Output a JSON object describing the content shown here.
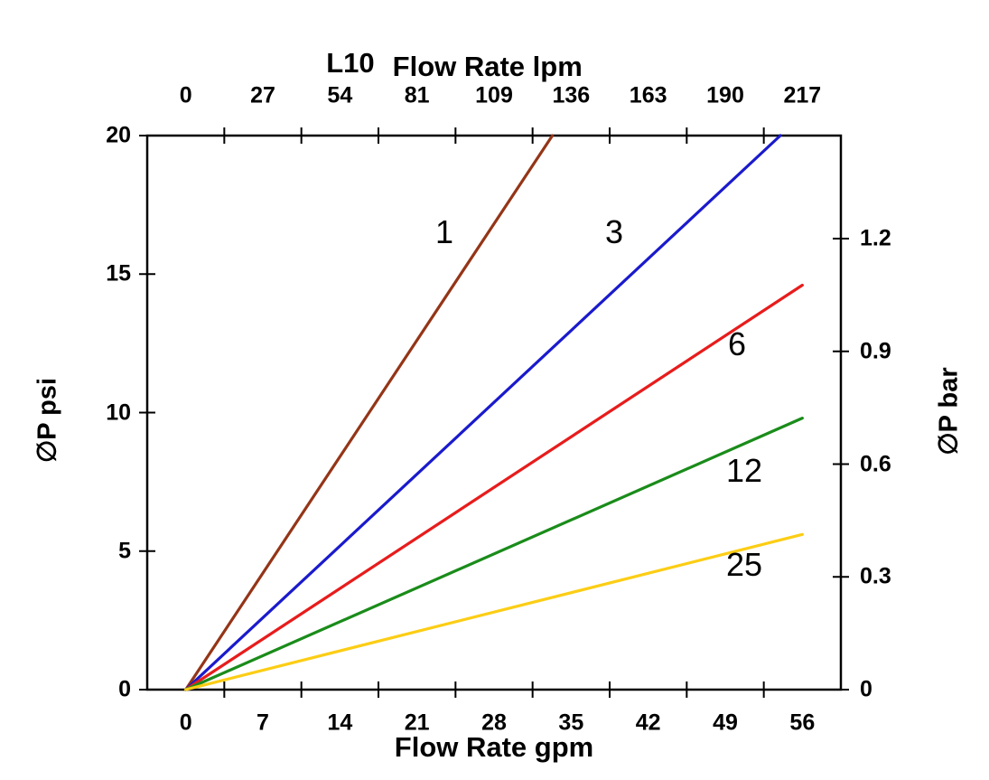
{
  "chart_data": {
    "type": "line",
    "model": "L10",
    "title": "L10 Flow Rate lpm",
    "x_axis_top": {
      "label": "Flow Rate lpm",
      "ticks": [
        "0",
        "27",
        "54",
        "81",
        "109",
        "136",
        "163",
        "190",
        "217"
      ]
    },
    "x_axis_bottom": {
      "label": "Flow Rate gpm",
      "ticks": [
        "0",
        "7",
        "14",
        "21",
        "28",
        "35",
        "42",
        "49",
        "56"
      ],
      "range_gpm": [
        0,
        60
      ]
    },
    "y_axis_left": {
      "label": "∅P psi",
      "ticks": [
        "0",
        "5",
        "10",
        "15",
        "20"
      ],
      "range_psi": [
        0,
        20
      ]
    },
    "y_axis_right": {
      "label": "∅P bar",
      "ticks": [
        "0",
        "0.3",
        "0.6",
        "0.9",
        "1.2"
      ]
    },
    "grid": false,
    "legend": "inline-labels",
    "series": [
      {
        "name": "1",
        "micron_rating": 1,
        "color": "#943517",
        "points_gpm_psi": [
          [
            0,
            0
          ],
          [
            33.3,
            20
          ]
        ]
      },
      {
        "name": "3",
        "micron_rating": 3,
        "color": "#1a1acd",
        "points_gpm_psi": [
          [
            0,
            0
          ],
          [
            54.0,
            20
          ]
        ]
      },
      {
        "name": "6",
        "micron_rating": 6,
        "color": "#e81c1c",
        "points_gpm_psi": [
          [
            0,
            0
          ],
          [
            56.0,
            14.6
          ]
        ]
      },
      {
        "name": "12",
        "micron_rating": 12,
        "color": "#1a8c1a",
        "points_gpm_psi": [
          [
            0,
            0
          ],
          [
            56.0,
            9.8
          ]
        ]
      },
      {
        "name": "25",
        "micron_rating": 25,
        "color": "#fccd14",
        "points_gpm_psi": [
          [
            0,
            0
          ],
          [
            56.0,
            5.6
          ]
        ]
      }
    ],
    "axis_color": "#000000",
    "background_color": "#ffffff"
  }
}
